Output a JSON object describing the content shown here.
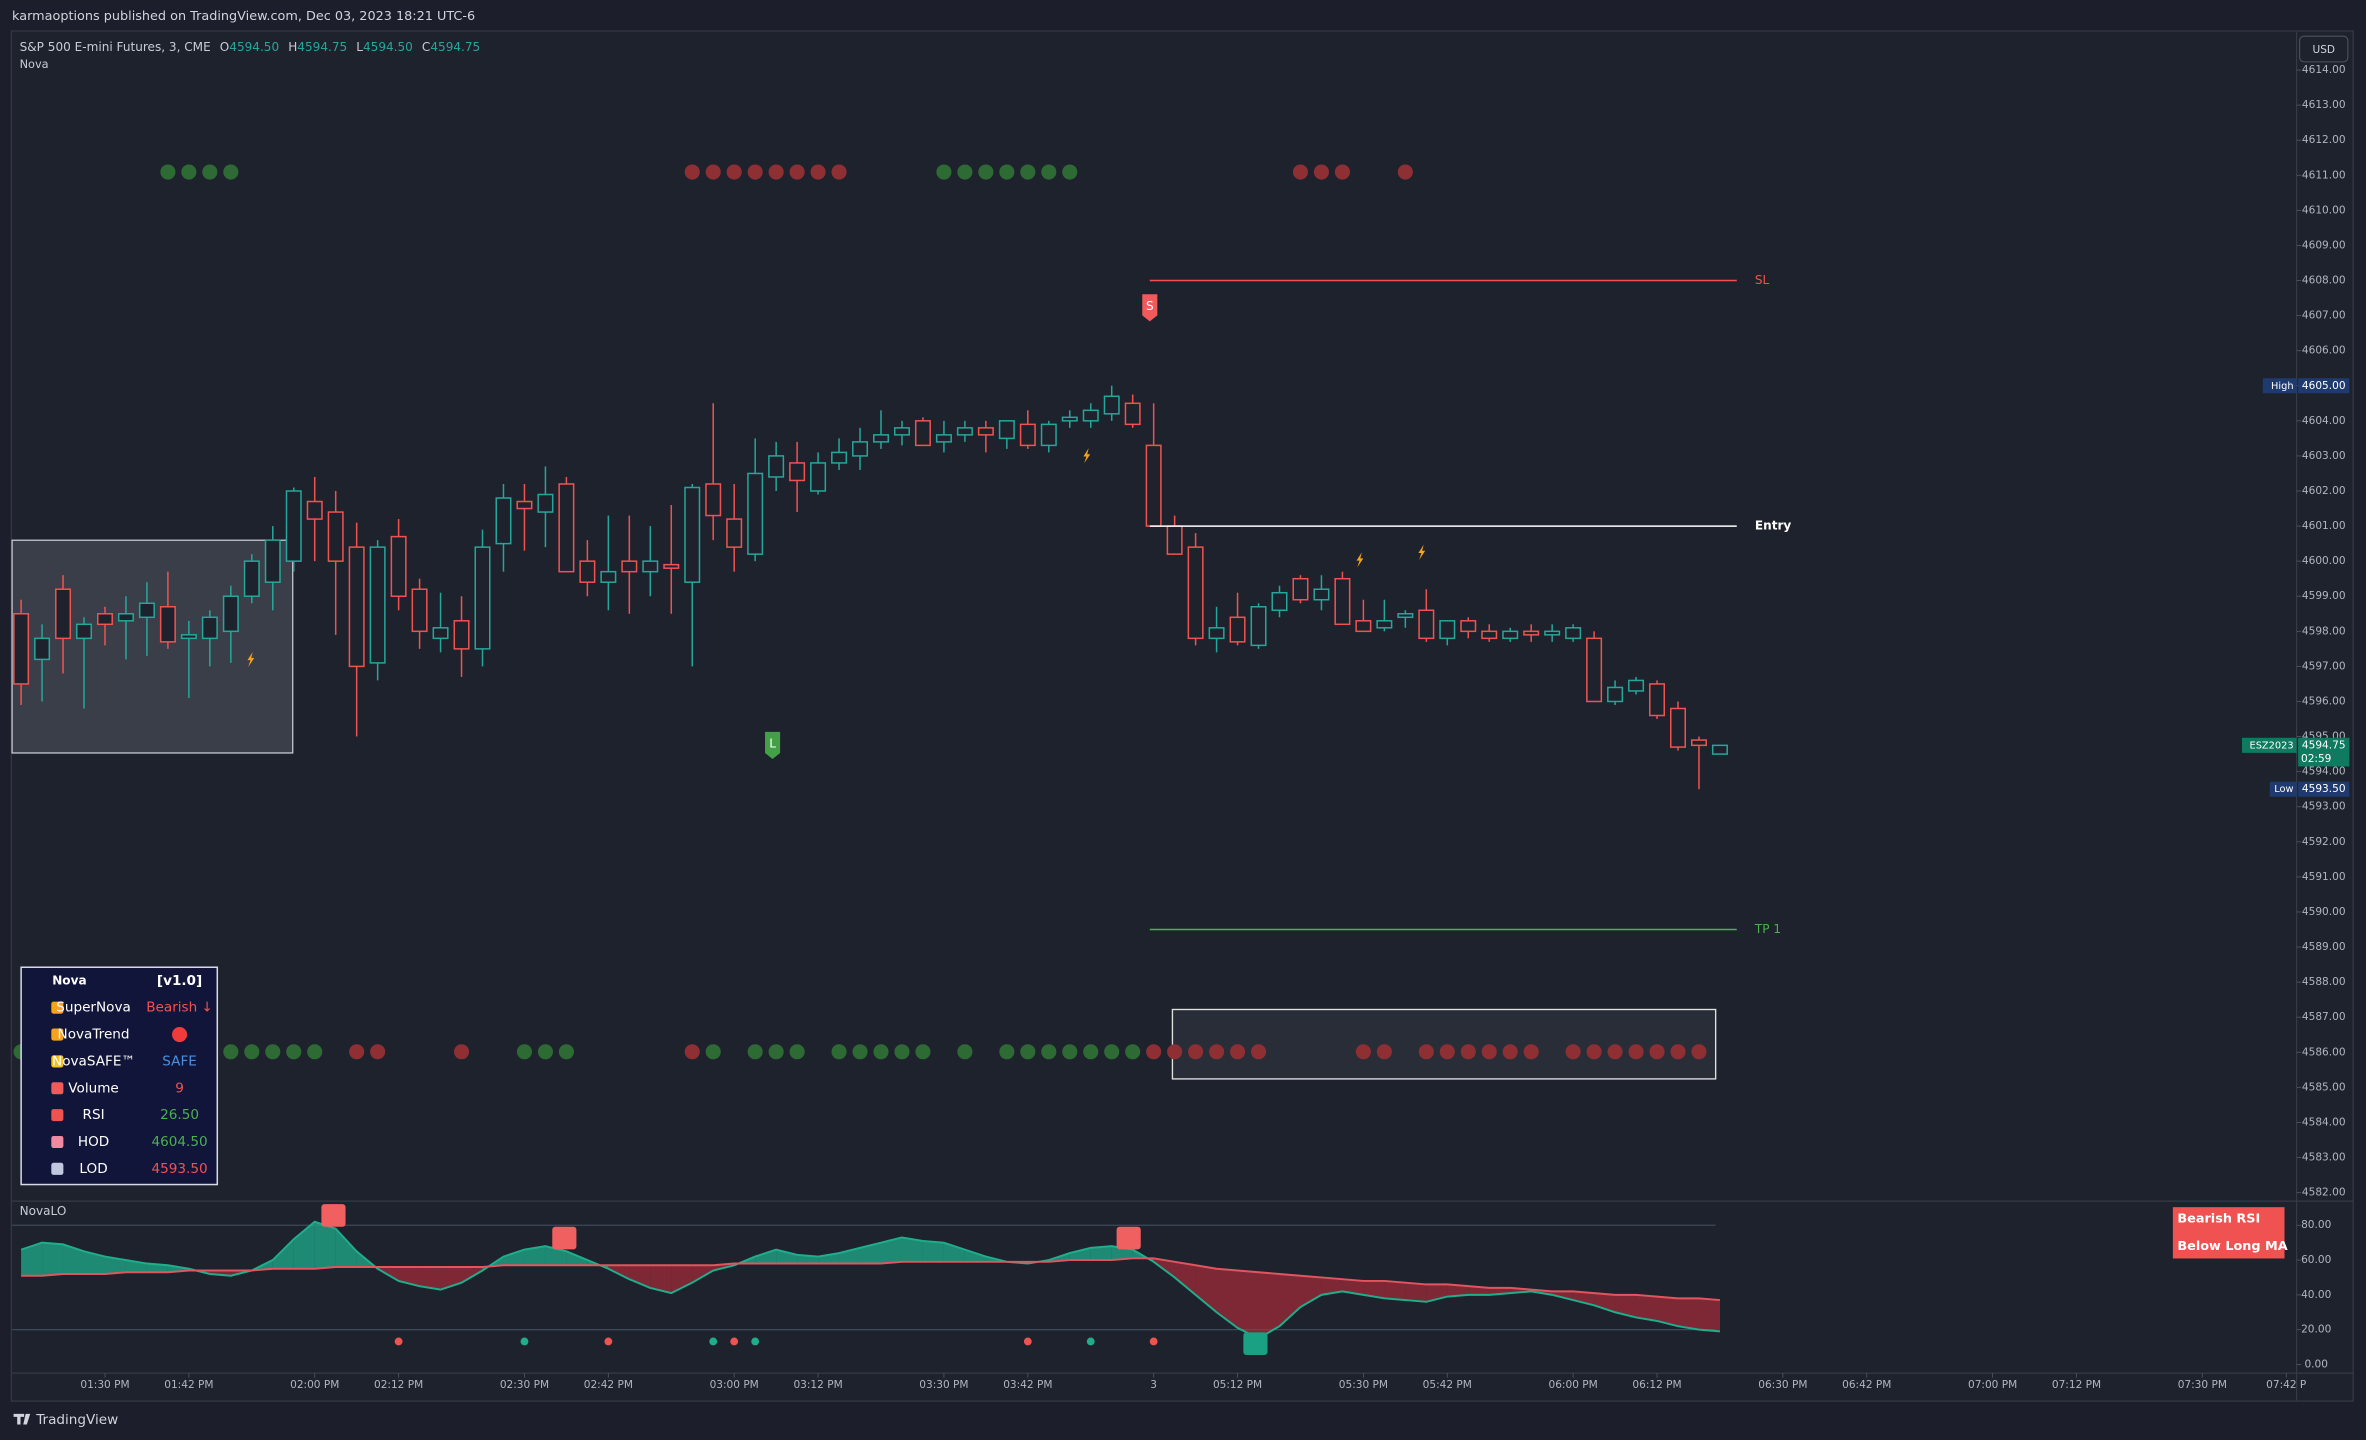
{
  "header": {
    "published": "karmaoptions published on TradingView.com, Dec 03, 2023 18:21 UTC-6",
    "brand": "TradingView"
  },
  "chart_data": [
    {
      "type": "candlestick",
      "title": "S&P 500 E-mini Futures, 3, CME",
      "indicator": "Nova",
      "currency": "USD",
      "ohlc_legend": [
        {
          "key": "O",
          "text": "4594.50"
        },
        {
          "key": "H",
          "text": "4594.75"
        },
        {
          "key": "L",
          "text": "4594.50"
        },
        {
          "key": "C",
          "text": "4594.75"
        }
      ],
      "up_color": "#26a69a",
      "down_color": "#ef5350",
      "open": [
        4598.5,
        4597.2,
        4599.2,
        4597.8,
        4598.5,
        4598.3,
        4598.4,
        4598.7,
        4597.8,
        4597.8,
        4598.0,
        4599.0,
        4599.4,
        4600.0,
        4601.7,
        4601.4,
        4600.4,
        4597.1,
        4600.7,
        4599.2,
        4597.8,
        4598.3,
        4597.5,
        4600.5,
        4601.7,
        4601.4,
        4602.2,
        4600.0,
        4599.4,
        4600.0,
        4599.7,
        4599.9,
        4599.4,
        4602.2,
        4601.2,
        4600.2,
        4602.4,
        4602.8,
        4602.0,
        4602.8,
        4603.0,
        4603.4,
        4603.6,
        4604.0,
        4603.4,
        4603.6,
        4603.8,
        4603.5,
        4603.9,
        4603.3,
        4604.0,
        4604.0,
        4604.2,
        4604.5,
        4603.3,
        4601.0,
        4600.4,
        4597.8,
        4598.4,
        4597.6,
        4598.6,
        4599.5,
        4598.9,
        4599.5,
        4598.3,
        4598.1,
        4598.4,
        4598.6,
        4597.8,
        4598.3,
        4598.0,
        4597.8,
        4598.0,
        4597.9,
        4597.8,
        4597.8,
        4596.0,
        4596.3,
        4596.5,
        4595.8,
        4594.9,
        4594.5
      ],
      "high": [
        4598.9,
        4598.2,
        4599.6,
        4598.4,
        4598.7,
        4599.0,
        4599.4,
        4599.7,
        4598.3,
        4598.6,
        4599.3,
        4600.2,
        4601.0,
        4602.1,
        4602.4,
        4602.0,
        4601.1,
        4600.6,
        4601.2,
        4599.5,
        4599.1,
        4599.0,
        4600.9,
        4602.2,
        4602.2,
        4602.7,
        4602.4,
        4600.6,
        4601.3,
        4601.3,
        4601.0,
        4601.6,
        4602.2,
        4604.5,
        4602.2,
        4603.5,
        4603.4,
        4603.4,
        4603.1,
        4603.5,
        4603.8,
        4604.3,
        4604.0,
        4604.1,
        4604.0,
        4604.0,
        4604.0,
        4604.0,
        4604.3,
        4604.0,
        4604.3,
        4604.5,
        4605.0,
        4604.75,
        4604.5,
        4601.3,
        4600.8,
        4598.7,
        4599.1,
        4598.8,
        4599.3,
        4599.6,
        4599.6,
        4599.7,
        4598.9,
        4598.9,
        4598.6,
        4599.2,
        4598.3,
        4598.4,
        4598.2,
        4598.1,
        4598.2,
        4598.2,
        4598.2,
        4598.0,
        4596.6,
        4596.7,
        4596.6,
        4596.0,
        4595.0,
        4594.75
      ],
      "low": [
        4595.9,
        4596.0,
        4596.8,
        4595.8,
        4597.6,
        4597.2,
        4597.3,
        4597.5,
        4596.1,
        4597.0,
        4597.1,
        4598.8,
        4598.6,
        4599.7,
        4600.0,
        4597.9,
        4595.0,
        4596.6,
        4598.6,
        4597.5,
        4597.4,
        4596.7,
        4597.0,
        4599.7,
        4600.3,
        4600.4,
        4599.7,
        4599.0,
        4598.6,
        4598.5,
        4599.0,
        4598.5,
        4597.0,
        4600.6,
        4599.7,
        4600.0,
        4602.0,
        4601.4,
        4601.9,
        4602.6,
        4602.6,
        4603.2,
        4603.3,
        4603.3,
        4603.1,
        4603.4,
        4603.1,
        4603.2,
        4603.2,
        4603.1,
        4603.8,
        4603.8,
        4604.0,
        4603.8,
        4601.0,
        4600.2,
        4597.6,
        4597.4,
        4597.6,
        4597.5,
        4598.4,
        4598.8,
        4598.6,
        4598.2,
        4598.0,
        4598.0,
        4598.1,
        4597.7,
        4597.6,
        4597.8,
        4597.7,
        4597.7,
        4597.7,
        4597.7,
        4597.7,
        4596.0,
        4595.9,
        4596.2,
        4595.5,
        4594.6,
        4593.5,
        4594.5
      ],
      "close": [
        4596.5,
        4597.8,
        4597.8,
        4598.2,
        4598.2,
        4598.5,
        4598.8,
        4597.7,
        4597.9,
        4598.4,
        4599.0,
        4600.0,
        4600.6,
        4602.0,
        4601.2,
        4600.0,
        4597.0,
        4600.4,
        4599.0,
        4598.0,
        4598.1,
        4597.5,
        4600.4,
        4601.8,
        4601.5,
        4601.9,
        4599.7,
        4599.4,
        4599.7,
        4599.7,
        4600.0,
        4599.8,
        4602.1,
        4601.3,
        4600.4,
        4602.5,
        4603.0,
        4602.3,
        4602.8,
        4603.1,
        4603.4,
        4603.6,
        4603.8,
        4603.3,
        4603.6,
        4603.8,
        4603.6,
        4604.0,
        4603.3,
        4603.9,
        4604.1,
        4604.3,
        4604.7,
        4603.9,
        4601.0,
        4600.2,
        4597.8,
        4598.1,
        4597.7,
        4598.7,
        4599.1,
        4598.9,
        4599.2,
        4598.2,
        4598.0,
        4598.3,
        4598.5,
        4597.8,
        4598.3,
        4598.0,
        4597.8,
        4598.0,
        4597.9,
        4598.0,
        4598.1,
        4596.0,
        4596.4,
        4596.6,
        4595.6,
        4594.7,
        4594.75,
        4594.75
      ],
      "xlim": [
        -0.43,
        108.35
      ],
      "xticks": [
        {
          "value": 4,
          "label": "01:30 PM"
        },
        {
          "value": 8,
          "label": "01:42 PM"
        },
        {
          "value": 14,
          "label": "02:00 PM"
        },
        {
          "value": 18,
          "label": "02:12 PM"
        },
        {
          "value": 24,
          "label": "02:30 PM"
        },
        {
          "value": 28,
          "label": "02:42 PM"
        },
        {
          "value": 34,
          "label": "03:00 PM"
        },
        {
          "value": 38,
          "label": "03:12 PM"
        },
        {
          "value": 44,
          "label": "03:30 PM"
        },
        {
          "value": 48,
          "label": "03:42 PM"
        },
        {
          "value": 54,
          "label": "3"
        },
        {
          "value": 58,
          "label": "05:12 PM"
        },
        {
          "value": 64,
          "label": "05:30 PM"
        },
        {
          "value": 68,
          "label": "05:42 PM"
        },
        {
          "value": 74,
          "label": "06:00 PM"
        },
        {
          "value": 78,
          "label": "06:12 PM"
        },
        {
          "value": 84,
          "label": "06:30 PM"
        },
        {
          "value": 88,
          "label": "06:42 PM"
        },
        {
          "value": 94,
          "label": "07:00 PM"
        },
        {
          "value": 98,
          "label": "07:12 PM"
        },
        {
          "value": 104,
          "label": "07:30 PM"
        },
        {
          "value": 108,
          "label": "07:42 P"
        }
      ],
      "ylim": [
        4581.8,
        4615.05
      ],
      "yticks": [
        {
          "value": 4614,
          "label": "4614.00"
        },
        {
          "value": 4613,
          "label": "4613.00"
        },
        {
          "value": 4612,
          "label": "4612.00"
        },
        {
          "value": 4611,
          "label": "4611.00"
        },
        {
          "value": 4610,
          "label": "4610.00"
        },
        {
          "value": 4609,
          "label": "4609.00"
        },
        {
          "value": 4608,
          "label": "4608.00"
        },
        {
          "value": 4607,
          "label": "4607.00"
        },
        {
          "value": 4606,
          "label": "4606.00"
        },
        {
          "value": 4605,
          "label": "4605.00"
        },
        {
          "value": 4604,
          "label": "4604.00"
        },
        {
          "value": 4603,
          "label": "4603.00"
        },
        {
          "value": 4602,
          "label": "4602.00"
        },
        {
          "value": 4601,
          "label": "4601.00"
        },
        {
          "value": 4600,
          "label": "4600.00"
        },
        {
          "value": 4599,
          "label": "4599.00"
        },
        {
          "value": 4598,
          "label": "4598.00"
        },
        {
          "value": 4597,
          "label": "4597.00"
        },
        {
          "value": 4596,
          "label": "4596.00"
        },
        {
          "value": 4595,
          "label": "4595.00"
        },
        {
          "value": 4594,
          "label": "4594.00"
        },
        {
          "value": 4593,
          "label": "4593.00"
        },
        {
          "value": 4592,
          "label": "4592.00"
        },
        {
          "value": 4591,
          "label": "4591.00"
        },
        {
          "value": 4590,
          "label": "4590.00"
        },
        {
          "value": 4589,
          "label": "4589.00"
        },
        {
          "value": 4588,
          "label": "4588.00"
        },
        {
          "value": 4587,
          "label": "4587.00"
        },
        {
          "value": 4586,
          "label": "4586.00"
        },
        {
          "value": 4585,
          "label": "4585.00"
        },
        {
          "value": 4584,
          "label": "4584.00"
        },
        {
          "value": 4583,
          "label": "4583.00"
        },
        {
          "value": 4582,
          "label": "4582.00"
        }
      ],
      "levels": [
        {
          "name": "SL",
          "value": 4608,
          "color": "#ef5350"
        },
        {
          "name": "Entry",
          "value": 4601,
          "color": "#ffffff"
        },
        {
          "name": "TP 1",
          "value": 4589.5,
          "color": "#4caf50"
        }
      ],
      "price_tags": [
        {
          "label": "High",
          "value": 4605,
          "value_label": "4605.00",
          "color": "#1e3a6e"
        },
        {
          "label": "ESZ2023",
          "value": 4594.75,
          "value_label": "4594.75",
          "countdown": "02:59",
          "color": "#0e7a5f"
        },
        {
          "label": "Low",
          "value": 4593.5,
          "value_label": "4593.50",
          "color": "#1e3a6e"
        }
      ],
      "signals": [
        {
          "label": "S",
          "color": "#f05a5a"
        },
        {
          "label": "L",
          "color": "#43a047"
        }
      ]
    },
    {
      "type": "line",
      "title": "NovaLO",
      "ylim": [
        -5,
        93
      ],
      "yticks": [
        {
          "value": 80,
          "label": "80.00"
        },
        {
          "value": 60,
          "label": "60.00"
        },
        {
          "value": 40,
          "label": "40.00"
        },
        {
          "value": 20,
          "label": "20.00"
        },
        {
          "value": 0,
          "label": "0.00"
        }
      ],
      "levels": [
        80,
        20
      ],
      "series": [
        {
          "color": "#1fae8c",
          "values": [
            66,
            70,
            69,
            65,
            62,
            60,
            58,
            57,
            55,
            52,
            51,
            54,
            60,
            72,
            82,
            78,
            65,
            55,
            48,
            45,
            43,
            47,
            54,
            62,
            66,
            68,
            65,
            60,
            55,
            49,
            44,
            41,
            47,
            54,
            57,
            62,
            66,
            63,
            62,
            64,
            67,
            70,
            73,
            71,
            70,
            66,
            62,
            59,
            58,
            60,
            64,
            67,
            68,
            66,
            59,
            50,
            40,
            30,
            21,
            15,
            22,
            33,
            40,
            42,
            40,
            38,
            37,
            36,
            39,
            40,
            40,
            41,
            42,
            40,
            37,
            34,
            30,
            27,
            25,
            22,
            20,
            19
          ]
        },
        {
          "color": "#e05560",
          "values": [
            51,
            51,
            52,
            52,
            52,
            53,
            53,
            53,
            54,
            54,
            54,
            54,
            55,
            55,
            55,
            56,
            56,
            56,
            56,
            56,
            56,
            56,
            56,
            57,
            57,
            57,
            57,
            57,
            57,
            57,
            57,
            57,
            57,
            57,
            58,
            58,
            58,
            58,
            58,
            58,
            58,
            58,
            59,
            59,
            59,
            59,
            59,
            59,
            59,
            59,
            60,
            60,
            60,
            61,
            61,
            59,
            57,
            55,
            54,
            53,
            52,
            51,
            50,
            49,
            48,
            48,
            47,
            46,
            46,
            45,
            44,
            44,
            43,
            42,
            42,
            41,
            40,
            40,
            39,
            38,
            38,
            37
          ]
        }
      ],
      "alert": [
        "Bearish RSI",
        "Below Long MA"
      ]
    }
  ],
  "panel": {
    "rows": [
      {
        "label": "Nova",
        "value": "[v1.0]"
      },
      {
        "label": "SuperNova",
        "value": "Bearish ↓",
        "color": "#ef5350"
      },
      {
        "label": "NovaTrend"
      },
      {
        "label": "NovaSAFE™",
        "value": "SAFE",
        "color": "#4a90e2"
      },
      {
        "label": "Volume",
        "value": "9",
        "color": "#ef5350"
      },
      {
        "label": "RSI",
        "value": "26.50",
        "color": "#4caf50"
      },
      {
        "label": "HOD",
        "value": "4604.50",
        "color": "#4caf50"
      },
      {
        "label": "LOD",
        "value": "4593.50",
        "color": "#ef5350"
      }
    ]
  }
}
